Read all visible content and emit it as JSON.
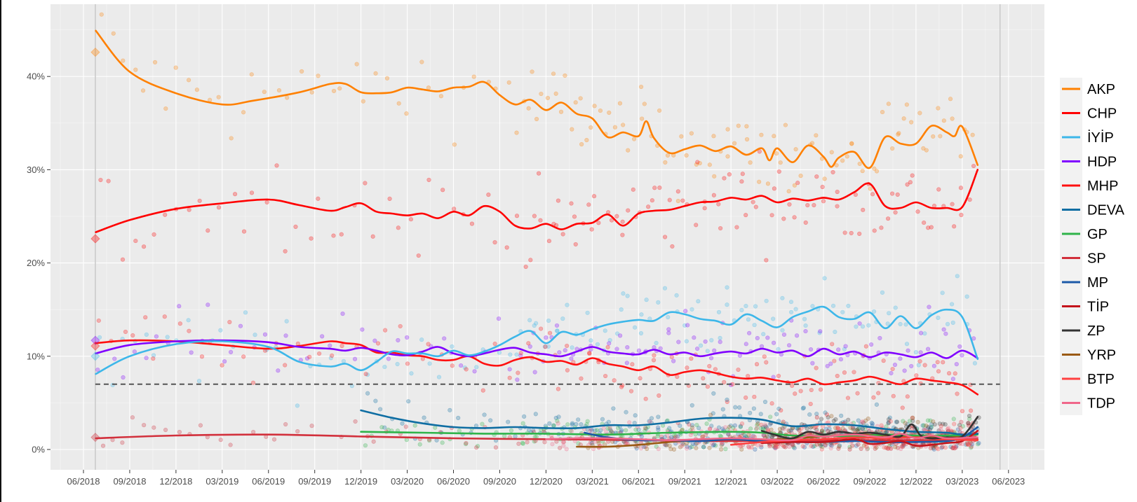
{
  "chart_data": {
    "type": "line",
    "title": "",
    "xlabel": "",
    "ylabel": "",
    "x_unit": "months since 06/2018",
    "xlim": [
      -2.2,
      63
    ],
    "ylim": [
      -2.2,
      46.5
    ],
    "grid": true,
    "legend_position": "right",
    "x_ticks": [
      {
        "m": 0,
        "label": "06/2018"
      },
      {
        "m": 3,
        "label": "09/2018"
      },
      {
        "m": 6,
        "label": "12/2018"
      },
      {
        "m": 9,
        "label": "03/2019"
      },
      {
        "m": 12,
        "label": "06/2019"
      },
      {
        "m": 15,
        "label": "09/2019"
      },
      {
        "m": 18,
        "label": "12/2019"
      },
      {
        "m": 21,
        "label": "03/2020"
      },
      {
        "m": 24,
        "label": "06/2020"
      },
      {
        "m": 27,
        "label": "09/2020"
      },
      {
        "m": 30,
        "label": "12/2020"
      },
      {
        "m": 33,
        "label": "03/2021"
      },
      {
        "m": 36,
        "label": "06/2021"
      },
      {
        "m": 39,
        "label": "09/2021"
      },
      {
        "m": 42,
        "label": "12/2021"
      },
      {
        "m": 45,
        "label": "03/2022"
      },
      {
        "m": 48,
        "label": "06/2022"
      },
      {
        "m": 51,
        "label": "09/2022"
      },
      {
        "m": 54,
        "label": "12/2022"
      },
      {
        "m": 57,
        "label": "03/2023"
      },
      {
        "m": 60,
        "label": "06/2023"
      }
    ],
    "y_ticks": [
      {
        "v": 0,
        "label": "0%"
      },
      {
        "v": 10,
        "label": "10%"
      },
      {
        "v": 20,
        "label": "20%"
      },
      {
        "v": 30,
        "label": "30%"
      },
      {
        "v": 40,
        "label": "40%"
      }
    ],
    "election_lines_m": [
      0.77,
      59.45
    ],
    "threshold": {
      "value": 7,
      "style": "dashed"
    },
    "election_2018_results": [
      {
        "party": "AKP",
        "value": 42.6
      },
      {
        "party": "CHP",
        "value": 22.6
      },
      {
        "party": "HDP",
        "value": 11.7
      },
      {
        "party": "MHP",
        "value": 11.1
      },
      {
        "party": "İYİP",
        "value": 10.0
      },
      {
        "party": "SP",
        "value": 1.3
      }
    ],
    "series": [
      {
        "name": "AKP",
        "color": "#FF8000",
        "x": [
          0.8,
          3,
          6,
          9,
          11,
          14,
          16,
          17,
          18,
          19,
          20,
          21,
          22,
          23,
          24,
          25,
          26,
          27,
          28,
          29,
          30,
          31,
          32,
          33,
          34,
          35,
          36,
          36.5,
          37,
          38,
          39,
          40,
          41,
          42,
          43,
          44,
          44.5,
          45,
          46,
          47,
          48,
          48.5,
          49,
          50,
          51,
          52,
          53,
          54,
          55,
          56,
          56.5,
          57,
          58
        ],
        "y": [
          44.9,
          40.5,
          38.2,
          37.0,
          37.4,
          38.3,
          39.2,
          39.2,
          38.3,
          38.2,
          38.3,
          38.8,
          38.6,
          38.4,
          38.8,
          38.9,
          39.4,
          38.0,
          37.0,
          37.5,
          36.4,
          37.2,
          36.0,
          35.5,
          33.5,
          34.0,
          33.6,
          35.2,
          33.4,
          31.8,
          32.2,
          32.6,
          32.0,
          32.5,
          31.6,
          32.3,
          31.0,
          32.3,
          30.8,
          32.6,
          31.4,
          30.3,
          31.3,
          31.9,
          30.2,
          33.5,
          32.8,
          32.8,
          34.7,
          34.0,
          33.6,
          34.6,
          30.5
        ]
      },
      {
        "name": "CHP",
        "color": "#FF0000",
        "x": [
          0.8,
          3,
          6,
          9,
          12,
          14,
          16,
          17,
          18,
          19,
          20,
          21,
          22,
          23,
          24,
          25,
          26,
          27,
          28,
          29,
          30,
          31,
          32,
          33,
          34,
          35,
          36,
          37,
          38,
          39,
          40,
          41,
          42,
          43,
          44,
          45,
          46,
          47,
          48,
          49,
          50,
          51,
          52,
          53,
          54,
          55,
          56,
          57,
          58
        ],
        "y": [
          23.3,
          24.6,
          25.8,
          26.4,
          26.8,
          26.2,
          25.6,
          26.0,
          26.4,
          25.5,
          25.3,
          25.1,
          25.3,
          24.8,
          25.5,
          25.1,
          26.1,
          25.5,
          24.0,
          23.7,
          24.2,
          23.6,
          24.2,
          24.3,
          25.2,
          24.0,
          25.3,
          25.6,
          25.7,
          26.1,
          26.5,
          26.6,
          27.0,
          26.8,
          27.2,
          26.5,
          26.9,
          26.7,
          27.0,
          26.8,
          27.6,
          28.5,
          26.1,
          25.9,
          26.5,
          25.9,
          25.9,
          26.0,
          30.0
        ]
      },
      {
        "name": "İYİP",
        "color": "#3DB7E9",
        "x": [
          0.8,
          3,
          6,
          9,
          12,
          14,
          16,
          17,
          18,
          19,
          20,
          21,
          22,
          23,
          24,
          25,
          26,
          27,
          28,
          29,
          30,
          31,
          32,
          33,
          34,
          35,
          36,
          37,
          38,
          39,
          40,
          41,
          42,
          43,
          44,
          45,
          46,
          47,
          48,
          49,
          50,
          51,
          52,
          53,
          54,
          55,
          56,
          57,
          58
        ],
        "y": [
          8.1,
          10.0,
          11.3,
          11.6,
          11.0,
          9.4,
          8.9,
          9.2,
          8.5,
          9.4,
          10.5,
          10.3,
          10.3,
          10.0,
          10.6,
          10.1,
          10.5,
          11.2,
          12.1,
          12.7,
          11.4,
          12.6,
          12.3,
          12.9,
          13.4,
          13.7,
          13.9,
          13.8,
          14.7,
          14.5,
          14.0,
          13.8,
          13.4,
          14.5,
          13.8,
          13.1,
          14.2,
          14.8,
          15.3,
          14.2,
          14.0,
          14.7,
          13.0,
          14.3,
          13.0,
          14.4,
          15.0,
          14.2,
          9.7
        ]
      },
      {
        "name": "HDP",
        "color": "#8000FF",
        "x": [
          0.8,
          3,
          6,
          9,
          12,
          14,
          16,
          17,
          18,
          19,
          20,
          21,
          22,
          23,
          24,
          25,
          26,
          27,
          28,
          29,
          30,
          31,
          32,
          33,
          34,
          35,
          36,
          37,
          38,
          39,
          40,
          41,
          42,
          43,
          44,
          45,
          46,
          47,
          48,
          49,
          50,
          51,
          52,
          53,
          54,
          55,
          56,
          57,
          58
        ],
        "y": [
          10.3,
          11.2,
          11.6,
          11.7,
          11.5,
          11.0,
          10.8,
          10.6,
          10.9,
          10.6,
          10.2,
          10.1,
          10.5,
          11.0,
          10.3,
          10.0,
          10.3,
          10.7,
          10.9,
          10.4,
          10.2,
          10.0,
          10.5,
          11.0,
          10.5,
          10.3,
          10.2,
          10.7,
          10.2,
          10.4,
          10.0,
          10.3,
          10.5,
          10.3,
          10.8,
          10.4,
          10.6,
          10.0,
          10.8,
          10.2,
          10.5,
          9.9,
          10.4,
          10.2,
          9.9,
          10.4,
          9.8,
          10.6,
          9.8
        ]
      },
      {
        "name": "MHP",
        "color": "#FF1010",
        "x": [
          0.8,
          3,
          6,
          9,
          12,
          14,
          16,
          17,
          18,
          19,
          20,
          21,
          22,
          23,
          24,
          25,
          26,
          27,
          28,
          29,
          30,
          31,
          32,
          33,
          34,
          35,
          36,
          37,
          38,
          39,
          40,
          41,
          42,
          43,
          44,
          45,
          46,
          47,
          48,
          49,
          50,
          51,
          52,
          53,
          54,
          55,
          56,
          57,
          58
        ],
        "y": [
          11.4,
          11.7,
          11.6,
          11.2,
          10.8,
          11.1,
          11.6,
          11.4,
          11.2,
          10.4,
          10.4,
          10.1,
          10.0,
          9.6,
          9.6,
          10.0,
          9.2,
          9.0,
          9.6,
          9.9,
          9.4,
          9.5,
          9.1,
          9.8,
          9.2,
          8.9,
          8.5,
          8.9,
          8.0,
          8.3,
          8.5,
          8.2,
          7.8,
          7.6,
          7.7,
          7.4,
          7.2,
          7.6,
          7.0,
          7.2,
          7.4,
          7.8,
          7.4,
          7.0,
          7.6,
          7.4,
          7.2,
          6.9,
          5.9
        ]
      },
      {
        "name": "DEVA",
        "color": "#0F6EA3",
        "x": [
          18,
          20,
          22,
          24,
          26,
          28,
          30,
          32,
          34,
          36,
          38,
          40,
          42,
          44,
          46,
          48,
          50,
          52,
          54,
          56,
          57,
          58
        ],
        "y": [
          4.2,
          3.4,
          2.8,
          2.4,
          2.3,
          2.4,
          2.3,
          2.3,
          2.6,
          2.6,
          2.9,
          3.3,
          3.4,
          3.2,
          2.5,
          2.7,
          2.6,
          2.2,
          1.9,
          1.8,
          1.6,
          1.7
        ]
      },
      {
        "name": "GP",
        "color": "#2FB44A",
        "x": [
          18,
          22,
          26,
          30,
          34,
          38,
          42,
          44,
          46,
          48,
          50,
          52,
          54,
          56,
          58
        ],
        "y": [
          1.9,
          1.8,
          1.7,
          1.7,
          1.6,
          1.8,
          1.9,
          1.8,
          1.5,
          1.5,
          1.4,
          1.6,
          1.5,
          1.5,
          1.6
        ]
      },
      {
        "name": "SP",
        "color": "#D2303C",
        "x": [
          0.8,
          6,
          12,
          18,
          24,
          30,
          36,
          42,
          48,
          54,
          58
        ],
        "y": [
          1.2,
          1.5,
          1.6,
          1.4,
          1.2,
          1.1,
          1.0,
          0.9,
          1.0,
          1.0,
          1.1
        ]
      },
      {
        "name": "MP",
        "color": "#1C5AA8",
        "x": [
          32.5,
          34,
          36,
          38,
          40,
          42,
          44,
          46,
          48,
          50,
          52,
          54,
          56,
          57,
          58
        ],
        "y": [
          1.8,
          1.3,
          1.0,
          1.0,
          0.9,
          1.1,
          0.9,
          0.8,
          0.8,
          0.9,
          0.8,
          0.8,
          0.9,
          1.3,
          2.4
        ]
      },
      {
        "name": "TİP",
        "color": "#C4141C",
        "x": [
          44,
          46,
          48,
          50,
          51,
          52,
          53,
          54,
          55,
          56,
          57,
          58
        ],
        "y": [
          0.7,
          0.8,
          0.8,
          1.1,
          0.6,
          0.7,
          0.9,
          0.4,
          0.5,
          0.7,
          0.9,
          2.0
        ]
      },
      {
        "name": "ZP",
        "color": "#333333",
        "x": [
          44,
          45,
          46,
          47,
          48,
          49,
          50,
          51,
          52,
          53,
          53.7,
          54.3,
          55,
          56,
          57,
          58
        ],
        "y": [
          2.0,
          1.5,
          1.2,
          1.9,
          1.6,
          1.9,
          1.7,
          1.8,
          1.6,
          1.4,
          2.7,
          1.5,
          1.2,
          1.3,
          1.4,
          3.5
        ]
      },
      {
        "name": "YRP",
        "color": "#9A5A14",
        "x": [
          32,
          34,
          36,
          38,
          40,
          42,
          44,
          46,
          48,
          50,
          52,
          54,
          56,
          58
        ],
        "y": [
          0.3,
          0.3,
          0.5,
          0.8,
          1.0,
          1.0,
          1.0,
          1.2,
          1.4,
          1.6,
          1.5,
          1.4,
          1.3,
          1.7
        ]
      },
      {
        "name": "BTP",
        "color": "#FF4040",
        "x": [
          42,
          44,
          46,
          48,
          50,
          52,
          54,
          56,
          58
        ],
        "y": [
          0.5,
          0.8,
          1.0,
          1.1,
          1.3,
          1.2,
          1.3,
          1.1,
          1.0
        ]
      },
      {
        "name": "TDP",
        "color": "#F0678A",
        "x": [
          30,
          32,
          34,
          36,
          38,
          40,
          42,
          44,
          46,
          47,
          48,
          50,
          52,
          53,
          54,
          55,
          56,
          58
        ],
        "y": [
          1.1,
          1.2,
          1.2,
          1.1,
          1.0,
          1.1,
          1.2,
          1.1,
          1.0,
          1.5,
          1.4,
          1.6,
          1.3,
          1.7,
          1.2,
          1.5,
          1.2,
          1.3
        ]
      }
    ],
    "legend": [
      "AKP",
      "CHP",
      "İYİP",
      "HDP",
      "MHP",
      "DEVA",
      "GP",
      "SP",
      "MP",
      "TİP",
      "ZP",
      "YRP",
      "BTP",
      "TDP"
    ]
  }
}
